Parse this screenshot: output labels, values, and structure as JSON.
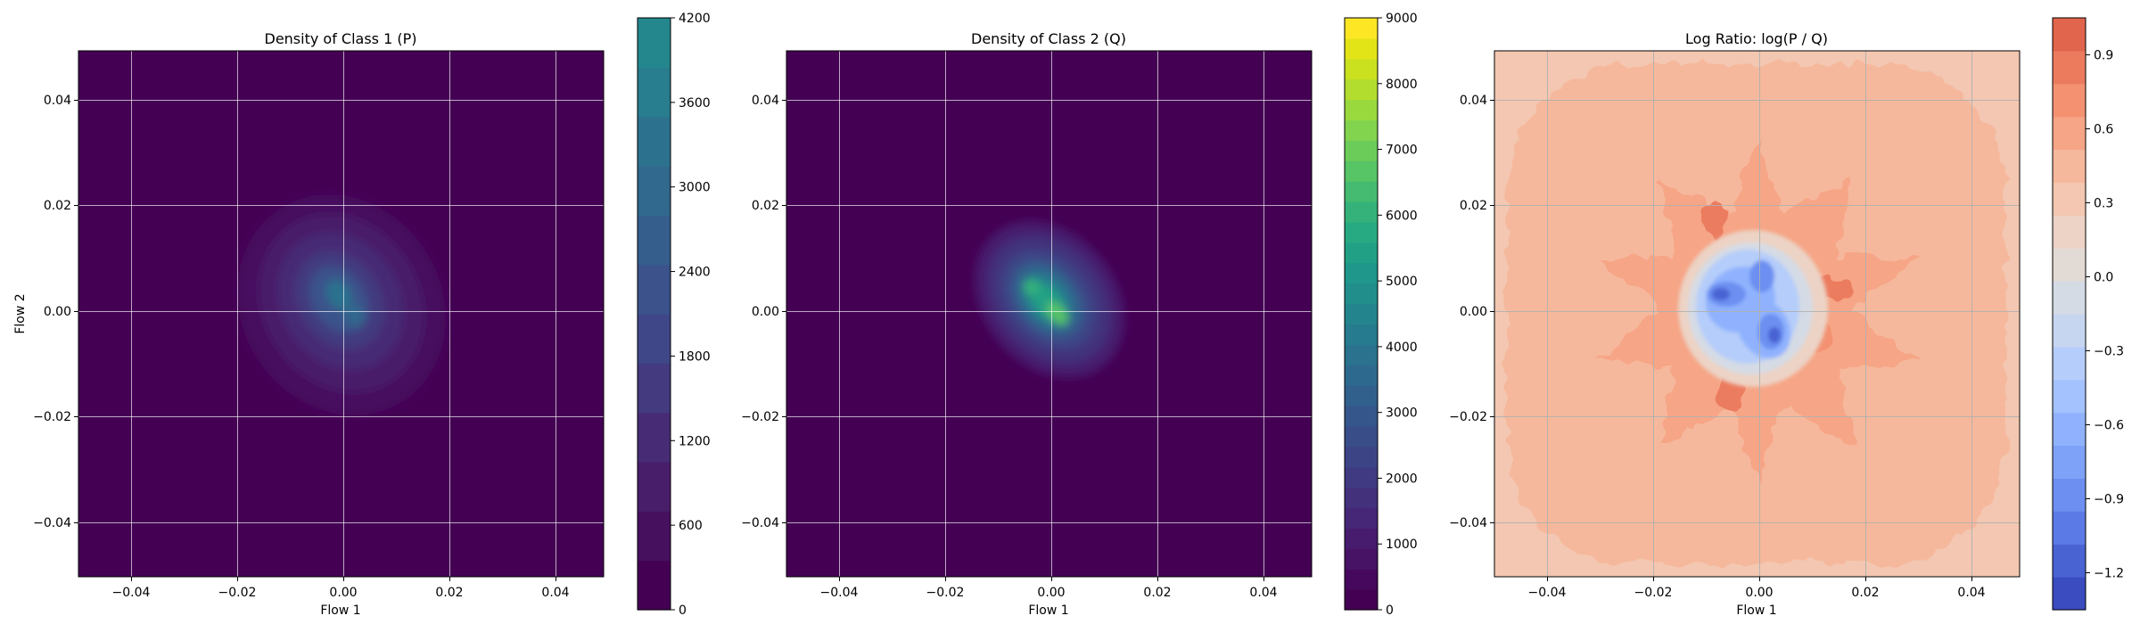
{
  "figure": {
    "background": "#ffffff"
  },
  "chart_data": [
    {
      "type": "heatmap",
      "title": "Density of Class 1 (P)",
      "xlabel": "Flow 1",
      "ylabel": "Flow 2",
      "xlim": [
        -0.05,
        0.049
      ],
      "ylim": [
        -0.05,
        0.049
      ],
      "xticks": [
        -0.04,
        -0.02,
        0.0,
        0.02,
        0.04
      ],
      "yticks": [
        -0.04,
        -0.02,
        0.0,
        0.02,
        0.04
      ],
      "xtick_labels": [
        "−0.04",
        "−0.02",
        "0.00",
        "0.02",
        "0.04"
      ],
      "ytick_labels": [
        "−0.04",
        "−0.02",
        "0.00",
        "0.02",
        "0.04"
      ],
      "grid": true,
      "colormap": "viridis",
      "colorbar": {
        "min": 0,
        "max": 4200,
        "ticks": [
          0,
          600,
          1200,
          1800,
          2400,
          3000,
          3600,
          4200
        ],
        "tick_labels": [
          "0",
          "600",
          "1200",
          "1800",
          "2400",
          "3000",
          "3600",
          "4200"
        ],
        "colors": [
          "#440154",
          "#46105f",
          "#481e6a",
          "#472c75",
          "#433a7f",
          "#3f4788",
          "#3b528b",
          "#355e8d",
          "#31688e",
          "#2c728e",
          "#287d8e",
          "#24878e"
        ]
      },
      "peaks": [
        {
          "x": -0.001,
          "y": 0.003,
          "value": 2600
        },
        {
          "x": 0.003,
          "y": -0.002,
          "value": 2300
        }
      ],
      "spread": {
        "x": 0.016,
        "y": 0.019,
        "correlation": -0.35
      }
    },
    {
      "type": "heatmap",
      "title": "Density of Class 2 (Q)",
      "xlabel": "Flow 1",
      "ylabel": "",
      "xlim": [
        -0.05,
        0.049
      ],
      "ylim": [
        -0.05,
        0.049
      ],
      "xticks": [
        -0.04,
        -0.02,
        0.0,
        0.02,
        0.04
      ],
      "yticks": [
        -0.04,
        -0.02,
        0.0,
        0.02,
        0.04
      ],
      "xtick_labels": [
        "−0.04",
        "−0.02",
        "0.00",
        "0.02",
        "0.04"
      ],
      "ytick_labels": [
        "−0.04",
        "−0.02",
        "0.00",
        "0.02",
        "0.04"
      ],
      "grid": true,
      "colormap": "viridis",
      "colorbar": {
        "min": 0,
        "max": 9000,
        "ticks": [
          0,
          1000,
          2000,
          3000,
          4000,
          5000,
          6000,
          7000,
          8000,
          9000
        ],
        "tick_labels": [
          "0",
          "1000",
          "2000",
          "3000",
          "4000",
          "5000",
          "6000",
          "7000",
          "8000",
          "9000"
        ],
        "colors": [
          "#440154",
          "#46085c",
          "#471365",
          "#471c6e",
          "#462676",
          "#43317c",
          "#403a82",
          "#3d4486",
          "#394d89",
          "#35568b",
          "#31608d",
          "#2d698e",
          "#2a728e",
          "#267b8e",
          "#23848d",
          "#218e8c",
          "#1f978a",
          "#21a085",
          "#27aa81",
          "#34b279",
          "#44bb70",
          "#57c466",
          "#6ccc5a",
          "#82d34d",
          "#9ad93d",
          "#b2dd2f",
          "#cae11f",
          "#e2e418",
          "#fde725"
        ]
      },
      "peaks": [
        {
          "x": 0.001,
          "y": -0.001,
          "value": 5200
        },
        {
          "x": -0.004,
          "y": 0.004,
          "value": 4300
        }
      ],
      "spread": {
        "x": 0.011,
        "y": 0.012,
        "correlation": -0.55
      }
    },
    {
      "type": "heatmap",
      "title": "Log Ratio: log(P / Q)",
      "xlabel": "Flow 1",
      "ylabel": "",
      "xlim": [
        -0.05,
        0.049
      ],
      "ylim": [
        -0.05,
        0.049
      ],
      "xticks": [
        -0.04,
        -0.02,
        0.0,
        0.02,
        0.04
      ],
      "yticks": [
        -0.04,
        -0.02,
        0.0,
        0.02,
        0.04
      ],
      "xtick_labels": [
        "−0.04",
        "−0.02",
        "0.00",
        "0.02",
        "0.04"
      ],
      "ytick_labels": [
        "−0.04",
        "−0.02",
        "0.00",
        "0.02",
        "0.04"
      ],
      "grid": true,
      "colormap": "coolwarm",
      "colorbar": {
        "min": -1.35,
        "max": 1.05,
        "ticks": [
          -1.2,
          -0.9,
          -0.6,
          -0.3,
          0.0,
          0.3,
          0.6,
          0.9
        ],
        "tick_labels": [
          "−1.2",
          "−0.9",
          "−0.6",
          "−0.3",
          "0.0",
          "0.3",
          "0.6",
          "0.9"
        ],
        "colors": [
          "#3b4cc0",
          "#4a63d3",
          "#5b7ae5",
          "#6c8ff1",
          "#7ea2f8",
          "#90b2fe",
          "#a3c2fe",
          "#b5cdfa",
          "#c6d6f1",
          "#d5dbe5",
          "#e2dad5",
          "#ecd3c5",
          "#f3c7b1",
          "#f6b89c",
          "#f6a586",
          "#f39171",
          "#ec7b5e",
          "#e1654c"
        ]
      },
      "levels": [
        {
          "region": "outer corners",
          "value": 0.45
        },
        {
          "region": "background",
          "value": 0.6
        },
        {
          "region": "star-shaped halo",
          "value": 0.75
        },
        {
          "region": "hot spots",
          "value": 0.9
        },
        {
          "region": "center",
          "value": -1.2
        }
      ]
    }
  ]
}
